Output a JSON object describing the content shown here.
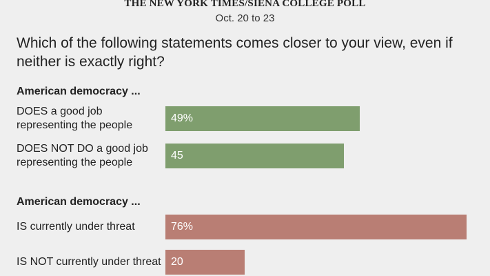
{
  "header": {
    "source": "THE NEW YORK TIMES/SIENA COLLEGE POLL",
    "dates": "Oct. 20 to 23"
  },
  "question": "Which of the following statements comes closer to your view, even if neither is exactly right?",
  "colors": {
    "green": "#7f9e6e",
    "red": "#b97e74",
    "background": "#efefef"
  },
  "chart_data": {
    "type": "bar",
    "orientation": "horizontal",
    "xlim": [
      0,
      100
    ],
    "groups": [
      {
        "header": "American democracy ...",
        "color": "#7f9e6e",
        "rows": [
          {
            "label": "DOES a good job representing the people",
            "value": 49,
            "value_label": "49%"
          },
          {
            "label": "DOES NOT DO a good job representing the people",
            "value": 45,
            "value_label": "45"
          }
        ]
      },
      {
        "header": "American democracy ...",
        "color": "#b97e74",
        "rows": [
          {
            "label": "IS currently under threat",
            "value": 76,
            "value_label": "76%"
          },
          {
            "label": "IS NOT currently under threat",
            "value": 20,
            "value_label": "20"
          }
        ]
      }
    ]
  }
}
